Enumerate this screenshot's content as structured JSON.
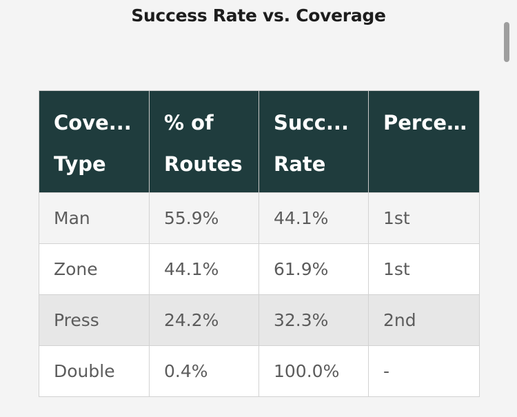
{
  "title": "Success Rate vs. Coverage",
  "table": {
    "headers": [
      [
        "Cove...",
        "Type"
      ],
      [
        "% of",
        "Routes"
      ],
      [
        "Succ...",
        "Rate"
      ],
      [
        "Perce..."
      ]
    ],
    "rows": [
      [
        "Man",
        "55.9%",
        "44.1%",
        "1st"
      ],
      [
        "Zone",
        "44.1%",
        "61.9%",
        "1st"
      ],
      [
        "Press",
        "24.2%",
        "32.3%",
        "2nd"
      ],
      [
        "Double",
        "0.4%",
        "100.0%",
        "-"
      ]
    ]
  },
  "colors": {
    "header_bg": "#1f3c3d",
    "header_text": "#ffffff",
    "body_text": "#5c5c5c",
    "page_bg": "#f4f4f4"
  }
}
